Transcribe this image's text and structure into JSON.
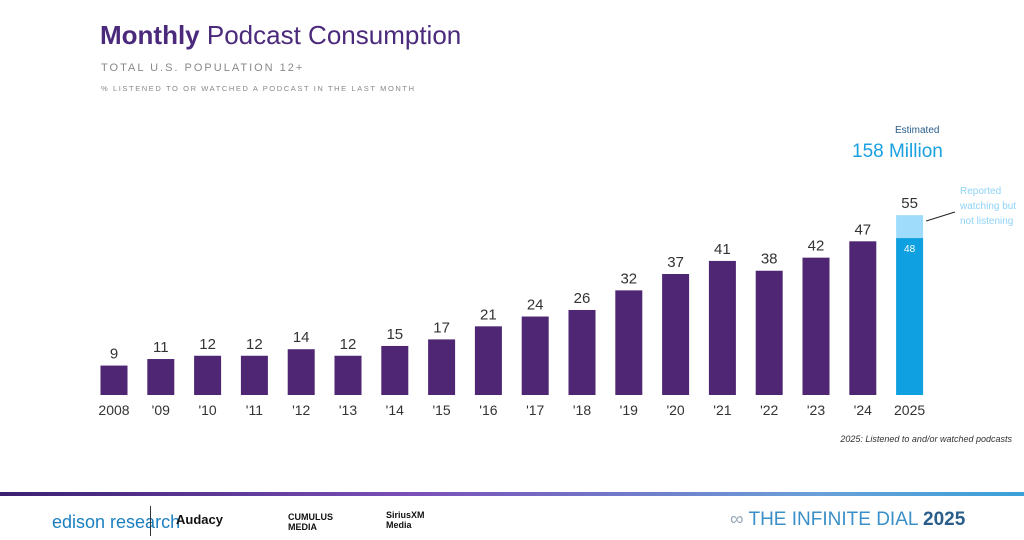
{
  "title": {
    "bold": "Monthly",
    "rest": " Podcast Consumption"
  },
  "subtitle": "TOTAL U.S. POPULATION 12+",
  "subtitle2": "% LISTENED TO OR WATCHED A PODCAST IN THE LAST MONTH",
  "estimate": {
    "label": "Estimated",
    "value": "158 Million"
  },
  "annotation": "Reported watching but not listening",
  "footnote": "2025: Listened to and/or watched podcasts",
  "colors": {
    "bar": "#4e2673",
    "bar2025": "#0ea0e0",
    "watching": "#9fdcfb"
  },
  "chart_data": {
    "type": "bar",
    "categories": [
      "2008",
      "'09",
      "'10",
      "'11",
      "'12",
      "'13",
      "'14",
      "'15",
      "'16",
      "'17",
      "'18",
      "'19",
      "'20",
      "'21",
      "'22",
      "'23",
      "'24",
      "2025"
    ],
    "values": [
      9,
      11,
      12,
      12,
      14,
      12,
      15,
      17,
      21,
      24,
      26,
      32,
      37,
      41,
      38,
      42,
      47,
      55
    ],
    "stack_2025": {
      "listened": 48,
      "watching_only": 7,
      "total": 55
    },
    "ylim": [
      0,
      60
    ],
    "grid": false
  },
  "footer": {
    "logos": [
      "edison research",
      "Audacy",
      "CUMULUS MEDIA",
      "SiriusXM Media"
    ],
    "brand": "THE INFINITE DIAL",
    "brand_year": "2025"
  }
}
